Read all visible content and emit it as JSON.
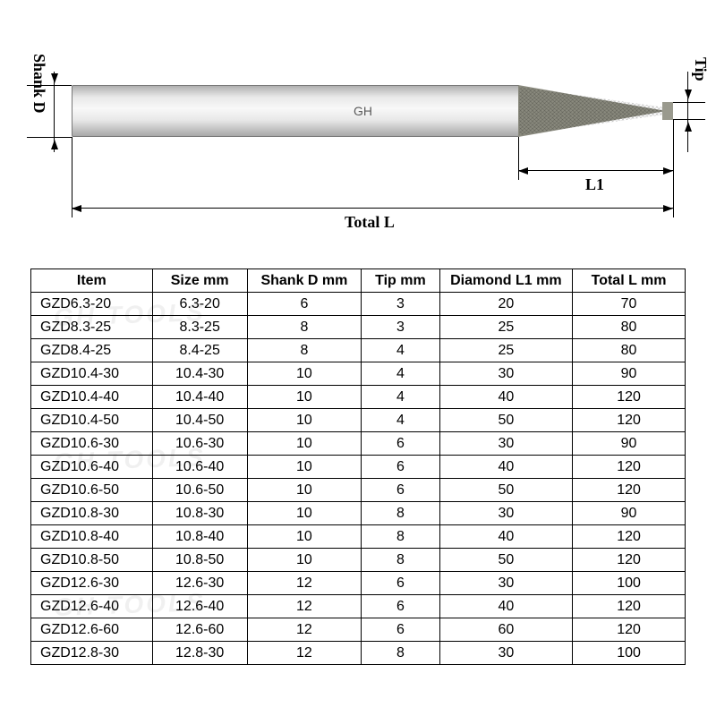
{
  "diagram": {
    "shank_d_label": "Shank D",
    "tip_label": "Tip",
    "l1_label": "L1",
    "total_l_label": "Total L",
    "gh_label": "GH",
    "colors": {
      "line": "#000000",
      "shank_top": "#b0b0b0",
      "shank_mid": "#f8f8f8",
      "shank_bot": "#a8a8a8",
      "tip": "#8a8a7e",
      "background": "#ffffff"
    }
  },
  "watermark_text": "GH TOOLS",
  "table": {
    "columns": [
      "Item",
      "Size mm",
      "Shank D mm",
      "Tip mm",
      "Diamond L1 mm",
      "Total L mm"
    ],
    "rows": [
      [
        "GZD6.3-20",
        "6.3-20",
        "6",
        "3",
        "20",
        "70"
      ],
      [
        "GZD8.3-25",
        "8.3-25",
        "8",
        "3",
        "25",
        "80"
      ],
      [
        "GZD8.4-25",
        "8.4-25",
        "8",
        "4",
        "25",
        "80"
      ],
      [
        "GZD10.4-30",
        "10.4-30",
        "10",
        "4",
        "30",
        "90"
      ],
      [
        "GZD10.4-40",
        "10.4-40",
        "10",
        "4",
        "40",
        "120"
      ],
      [
        "GZD10.4-50",
        "10.4-50",
        "10",
        "4",
        "50",
        "120"
      ],
      [
        "GZD10.6-30",
        "10.6-30",
        "10",
        "6",
        "30",
        "90"
      ],
      [
        "GZD10.6-40",
        "10.6-40",
        "10",
        "6",
        "40",
        "120"
      ],
      [
        "GZD10.6-50",
        "10.6-50",
        "10",
        "6",
        "50",
        "120"
      ],
      [
        "GZD10.8-30",
        "10.8-30",
        "10",
        "8",
        "30",
        "90"
      ],
      [
        "GZD10.8-40",
        "10.8-40",
        "10",
        "8",
        "40",
        "120"
      ],
      [
        "GZD10.8-50",
        "10.8-50",
        "10",
        "8",
        "50",
        "120"
      ],
      [
        "GZD12.6-30",
        "12.6-30",
        "12",
        "6",
        "30",
        "100"
      ],
      [
        "GZD12.6-40",
        "12.6-40",
        "12",
        "6",
        "40",
        "120"
      ],
      [
        "GZD12.6-60",
        "12.6-60",
        "12",
        "6",
        "60",
        "120"
      ],
      [
        "GZD12.8-30",
        "12.8-30",
        "12",
        "8",
        "30",
        "100"
      ]
    ]
  }
}
